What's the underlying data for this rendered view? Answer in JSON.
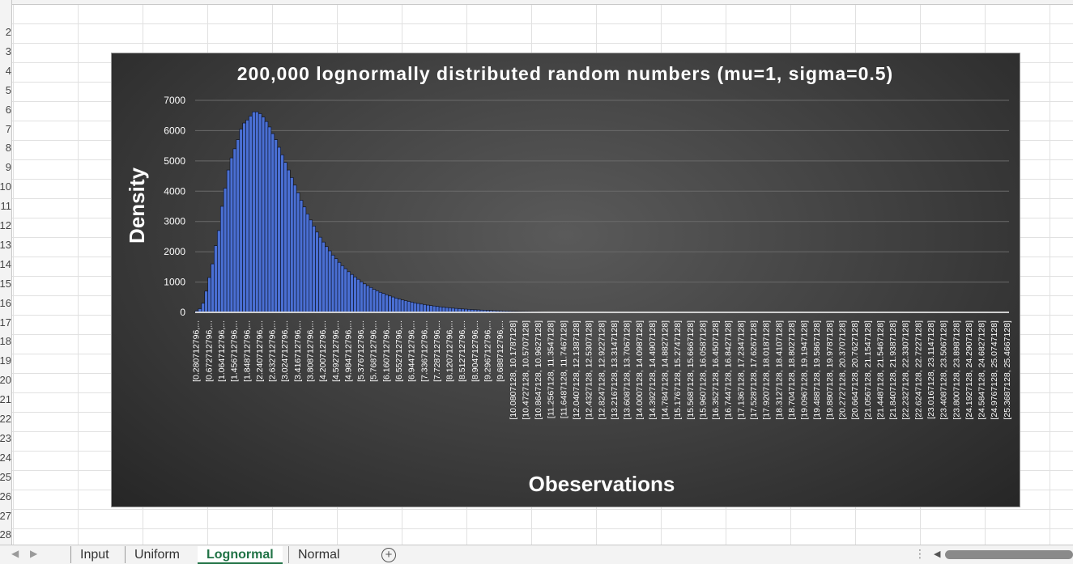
{
  "sheet": {
    "row_numbers": [
      "2",
      "3",
      "4",
      "5",
      "6",
      "7",
      "8",
      "9",
      "10",
      "11",
      "12",
      "13",
      "14",
      "15",
      "16",
      "17",
      "18",
      "19",
      "20",
      "21",
      "22",
      "23",
      "24",
      "25",
      "26",
      "27",
      "28"
    ]
  },
  "tabs": [
    {
      "label": "Input",
      "active": false
    },
    {
      "label": "Uniform",
      "active": false
    },
    {
      "label": "Lognormal",
      "active": true
    },
    {
      "label": "Normal",
      "active": false
    }
  ],
  "add_sheet_label": "+",
  "chart_data": {
    "type": "bar",
    "title": "200,000 lognormally distributed random numbers (mu=1, sigma=0.5)",
    "xlabel": "Obeservations",
    "ylabel": "Density",
    "ylim": [
      0,
      7000
    ],
    "yticks": [
      0,
      1000,
      2000,
      3000,
      4000,
      5000,
      6000,
      7000
    ],
    "grid": true,
    "bar_color": "#4a6fd3",
    "x_tick_labels": [
      "[0.280712796,...",
      "[0.672712796,...",
      "[1.064712796,...",
      "[1.456712796,...",
      "[1.848712796,...",
      "[2.240712796,...",
      "[2.632712796,...",
      "[3.024712796,...",
      "[3.416712796,...",
      "[3.808712796,...",
      "[4.200712796,...",
      "[4.592712796,...",
      "[4.984712796,...",
      "[5.376712796,...",
      "[5.768712796,...",
      "[6.160712796,...",
      "[6.552712796,...",
      "[6.944712796,...",
      "[7.336712796,...",
      "[7.728712796,...",
      "[8.120712796,...",
      "[8.512712796,...",
      "[8.904712796,...",
      "[9.296712796,...",
      "[9.688712796,...",
      "[10.0807128, 10.1787128]",
      "[10.4727128, 10.5707128]",
      "[10.8647128, 10.9627128]",
      "[11.2567128, 11.3547128]",
      "[11.6487128, 11.7467128]",
      "[12.0407128, 12.1387128]",
      "[12.4327128, 12.5307128]",
      "[12.8247128, 12.9227128]",
      "[13.2167128, 13.3147128]",
      "[13.6087128, 13.7067128]",
      "[14.0007128, 14.0987128]",
      "[14.3927128, 14.4907128]",
      "[14.7847128, 14.8827128]",
      "[15.1767128, 15.2747128]",
      "[15.5687128, 15.6667128]",
      "[15.9607128, 16.0587128]",
      "[16.3527128, 16.4507128]",
      "[16.7447128, 16.8427128]",
      "[17.1367128, 17.2347128]",
      "[17.5287128, 17.6267128]",
      "[17.9207128, 18.0187128]",
      "[18.3127128, 18.4107128]",
      "[18.7047128, 18.8027128]",
      "[19.0967128, 19.1947128]",
      "[19.4887128, 19.5867128]",
      "[19.8807128, 19.9787128]",
      "[20.2727128, 20.3707128]",
      "[20.6647128, 20.7627128]",
      "[21.0567128, 21.1547128]",
      "[21.4487128, 21.5467128]",
      "[21.8407128, 21.9387128]",
      "[22.2327128, 22.3307128]",
      "[22.6247128, 22.7227128]",
      "[23.0167128, 23.1147128]",
      "[23.4087128, 23.5067128]",
      "[23.8007128, 23.8987128]",
      "[24.1927128, 24.2907128]",
      "[24.5847128, 24.6827128]",
      "[24.9767128, 25.0747128]",
      "[25.3687128, 25.4667128]"
    ],
    "bin_start": 0.280712796,
    "bin_width": 0.098,
    "bin_count": 257,
    "values": [
      50,
      120,
      300,
      700,
      1150,
      1600,
      2200,
      2700,
      3500,
      4100,
      4700,
      5100,
      5400,
      5700,
      6050,
      6250,
      6350,
      6480,
      6620,
      6620,
      6560,
      6450,
      6300,
      6120,
      5900,
      5700,
      5450,
      5200,
      4950,
      4700,
      4450,
      4200,
      3950,
      3700,
      3480,
      3250,
      3050,
      2850,
      2650,
      2480,
      2320,
      2170,
      2030,
      1890,
      1770,
      1650,
      1540,
      1440,
      1340,
      1250,
      1170,
      1090,
      1010,
      940,
      880,
      820,
      760,
      710,
      660,
      620,
      580,
      540,
      505,
      470,
      440,
      410,
      385,
      360,
      335,
      312,
      292,
      272,
      255,
      238,
      222,
      208,
      194,
      181,
      169,
      158,
      148,
      138,
      129,
      120,
      112,
      105,
      98,
      91,
      85,
      80,
      74,
      69,
      65,
      60,
      56,
      52,
      49,
      46,
      43,
      40,
      37,
      35,
      32,
      30,
      28,
      26,
      24,
      23,
      21,
      20,
      19,
      17,
      16,
      15,
      14,
      13,
      12,
      11,
      11,
      10,
      9,
      9,
      8,
      8,
      7,
      7,
      6,
      6,
      5,
      5,
      5,
      4,
      4,
      4,
      4,
      3,
      3,
      3,
      3,
      3,
      2,
      2,
      2,
      2,
      2,
      2,
      2,
      1,
      1,
      1,
      1,
      1,
      1,
      1,
      1,
      1,
      1,
      1,
      1,
      1,
      0,
      0,
      0,
      0,
      0,
      0,
      0,
      0,
      0,
      0,
      0,
      0,
      0,
      0,
      0,
      0,
      0,
      0,
      0,
      0,
      0,
      0,
      0,
      0,
      0,
      0,
      0,
      0,
      0,
      0,
      0,
      0,
      0,
      0,
      0,
      0,
      0,
      0,
      0,
      0,
      0,
      0,
      0,
      0,
      0,
      0,
      0,
      0,
      0,
      0,
      0,
      0,
      0,
      0,
      0,
      0,
      0,
      0,
      0,
      0,
      0,
      0,
      0,
      0,
      0,
      0,
      0,
      0,
      0,
      0,
      0,
      0,
      0,
      0,
      0,
      0,
      0,
      0,
      0,
      0,
      0,
      0,
      0,
      0,
      0,
      0,
      0,
      0,
      0,
      0,
      0,
      0,
      0,
      0,
      0,
      0,
      0,
      0,
      0,
      0,
      0,
      0,
      0,
      0,
      0,
      0,
      0,
      0,
      0,
      0,
      0,
      0
    ]
  }
}
